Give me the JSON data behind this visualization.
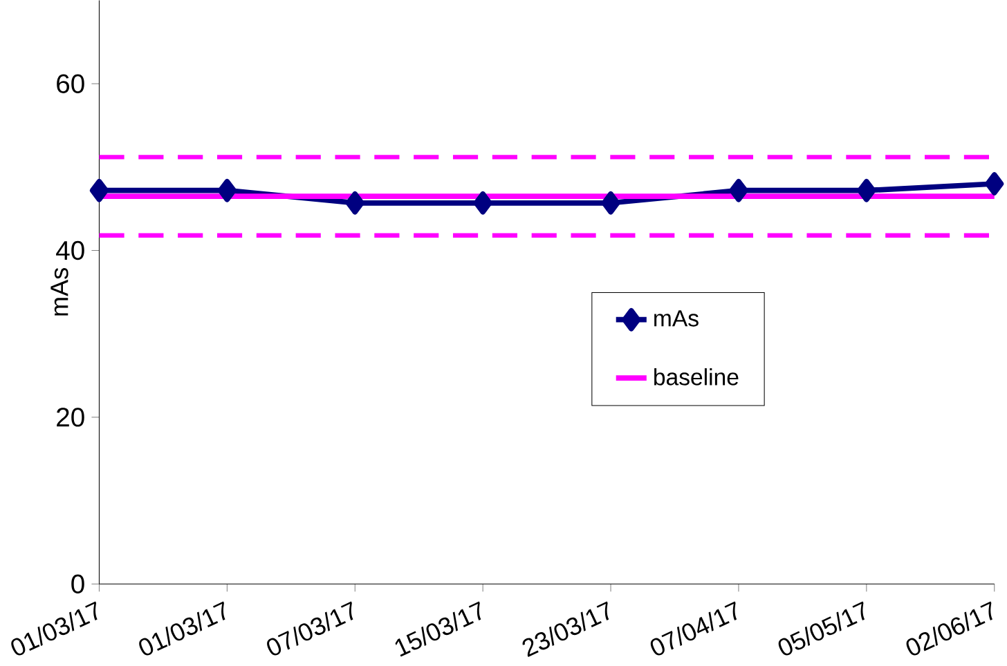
{
  "chart_data": {
    "type": "line",
    "ylabel": "mAs",
    "categories": [
      "01/03/17",
      "01/03/17",
      "07/03/17",
      "15/03/17",
      "23/03/17",
      "07/04/17",
      "05/05/17",
      "02/06/17"
    ],
    "series": [
      {
        "name": "mAs",
        "color": "#000080",
        "marker": "diamond",
        "values": [
          47.2,
          47.2,
          45.7,
          45.7,
          45.7,
          47.2,
          47.2,
          48
        ]
      },
      {
        "name": "baseline",
        "color": "#ff00ff",
        "marker": "none",
        "values": [
          46.5,
          46.5,
          46.5,
          46.5,
          46.5,
          46.5,
          46.5,
          46.5
        ]
      }
    ],
    "ref_lines": [
      {
        "axis": "y",
        "value": 51.2,
        "color": "#ff00ff",
        "line_style": "dashed"
      },
      {
        "axis": "y",
        "value": 41.8,
        "color": "#ff00ff",
        "line_style": "dashed"
      }
    ],
    "ylim": [
      0,
      70
    ],
    "yticks": [
      0,
      20,
      40,
      60
    ],
    "grid": false,
    "legend": "right"
  }
}
